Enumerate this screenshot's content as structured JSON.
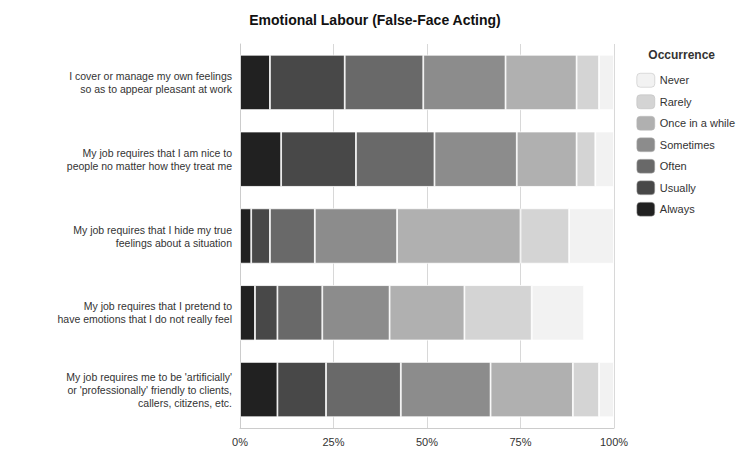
{
  "chart_data": {
    "type": "bar",
    "orientation": "horizontal",
    "stacked": true,
    "title": "Emotional Labour (False-Face Acting)",
    "categories": [
      "I cover or manage my own feelings\nso as to appear pleasant at work",
      "My job requires that I am nice to\npeople no matter how they treat me",
      "My job requires that I hide my true\nfeelings about a situation",
      "My job requires that I pretend to\nhave emotions that I do not really feel",
      "My job requires me to be 'artificially'\nor 'professionally' friendly to clients,\ncallers, citizens, etc."
    ],
    "series": [
      {
        "name": "Always",
        "color": "#212121",
        "values": [
          0.08,
          0.11,
          0.03,
          0.04,
          0.1
        ]
      },
      {
        "name": "Usually",
        "color": "#484848",
        "values": [
          0.2,
          0.2,
          0.05,
          0.06,
          0.13
        ]
      },
      {
        "name": "Often",
        "color": "#696969",
        "values": [
          0.21,
          0.21,
          0.12,
          0.12,
          0.2
        ]
      },
      {
        "name": "Sometimes",
        "color": "#8c8c8c",
        "values": [
          0.22,
          0.22,
          0.22,
          0.18,
          0.24
        ]
      },
      {
        "name": "Once in a while",
        "color": "#b0b0b0",
        "values": [
          0.19,
          0.16,
          0.33,
          0.2,
          0.22
        ]
      },
      {
        "name": "Rarely",
        "color": "#d4d4d4",
        "values": [
          0.06,
          0.05,
          0.13,
          0.18,
          0.07
        ]
      },
      {
        "name": "Never",
        "color": "#f2f2f2",
        "values": [
          0.04,
          0.05,
          0.12,
          0.14,
          0.04
        ]
      }
    ],
    "legend_title": "Occurrence",
    "legend": "right",
    "xlim": [
      0,
      1.0
    ],
    "xticks": [
      {
        "value": 0,
        "label": "0%"
      },
      {
        "value": 0.25,
        "label": "25%"
      },
      {
        "value": 0.5,
        "label": "50%"
      },
      {
        "value": 0.75,
        "label": "75%"
      },
      {
        "value": 1.0,
        "label": "100%"
      }
    ],
    "grid": true
  }
}
